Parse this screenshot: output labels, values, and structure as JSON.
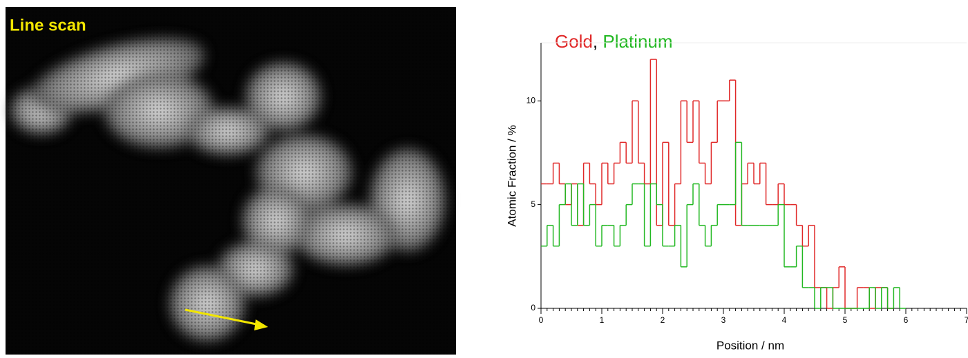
{
  "image": {
    "label": "Line scan"
  },
  "chart_data": {
    "type": "step",
    "legend_separator": ",",
    "x_label": "Position / nm",
    "y_label": "Atomic Fraction / %",
    "x": [
      0,
      0.1,
      0.2,
      0.3,
      0.4,
      0.5,
      0.6,
      0.7,
      0.8,
      0.9,
      1,
      1.1,
      1.2,
      1.3,
      1.4,
      1.5,
      1.6,
      1.7,
      1.8,
      1.9,
      2,
      2.1,
      2.2,
      2.3,
      2.4,
      2.5,
      2.6,
      2.7,
      2.8,
      2.9,
      3,
      3.1,
      3.2,
      3.3,
      3.4,
      3.5,
      3.6,
      3.7,
      3.8,
      3.9,
      4,
      4.1,
      4.2,
      4.3,
      4.4,
      4.5,
      4.6,
      4.7,
      4.8,
      4.9,
      5,
      5.1,
      5.2,
      5.3,
      5.4,
      5.5,
      5.6,
      5.7,
      5.8,
      5.9
    ],
    "series": [
      {
        "name": "Gold",
        "color": "#e02828",
        "values": [
          6,
          6,
          7,
          6,
          5,
          6,
          4,
          7,
          6,
          5,
          7,
          6,
          7,
          8,
          7,
          10,
          7,
          6,
          12,
          4,
          8,
          4,
          6,
          10,
          8,
          10,
          7,
          6,
          8,
          10,
          10,
          11,
          4,
          6,
          7,
          6,
          7,
          5,
          5,
          6,
          5,
          5,
          4,
          3,
          4,
          1,
          1,
          0,
          1,
          2,
          0,
          0,
          1,
          1,
          0,
          1,
          1,
          0,
          null,
          null
        ]
      },
      {
        "name": "Platinum",
        "color": "#22b822",
        "values": [
          3,
          4,
          3,
          5,
          6,
          4,
          6,
          4,
          5,
          3,
          4,
          4,
          3,
          4,
          5,
          6,
          6,
          3,
          6,
          5,
          3,
          3,
          4,
          2,
          5,
          6,
          4,
          3,
          4,
          5,
          5,
          5,
          8,
          4,
          4,
          4,
          4,
          4,
          4,
          5,
          2,
          2,
          3,
          1,
          1,
          0,
          1,
          1,
          0,
          0,
          0,
          0,
          0,
          0,
          1,
          0,
          1,
          0,
          1,
          0
        ]
      }
    ],
    "xlim": [
      0,
      7
    ],
    "xticks": [
      0,
      1,
      2,
      3,
      4,
      5,
      6,
      7
    ],
    "ylim": [
      0,
      12.8
    ],
    "yticks": [
      0,
      5,
      10
    ]
  }
}
